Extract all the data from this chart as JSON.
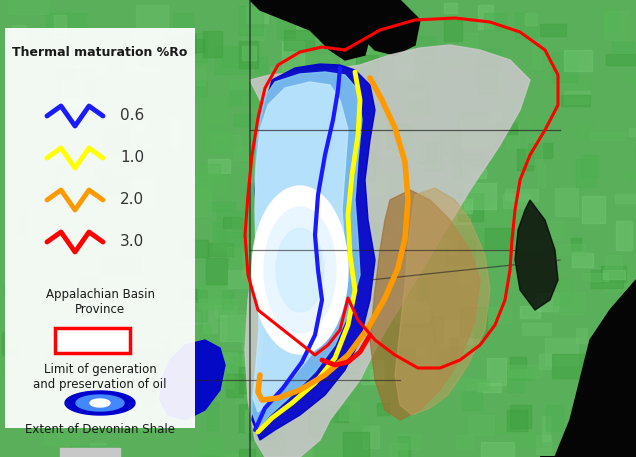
{
  "fig_width": 6.36,
  "fig_height": 4.57,
  "dpi": 100,
  "bg_green_light": "#6abf6a",
  "bg_green_mid": "#5aaf5a",
  "bg_green_dark": "#3a9a3a",
  "bg_green_vdark": "#2a8a2a",
  "ocean_black": "#050505",
  "terrain_brown": "#a07030",
  "terrain_tan": "#c0a060",
  "shale_gray": "#c8c8c8",
  "oil_blue_dark": "#0000cc",
  "oil_blue_mid": "#2255dd",
  "oil_sky": "#80c8f0",
  "oil_light": "#c0e8ff",
  "oil_white": "#ffffff",
  "contour_06": "#1a1aff",
  "contour_10": "#ffff00",
  "contour_20": "#ff9900",
  "contour_30": "#ff0000",
  "basin_border": "#ff0000",
  "state_border": "#222222",
  "legend_bg": "#ffffff",
  "legend_title": "Thermal maturation %Ro",
  "legend_items": [
    {
      "label": "0.6",
      "color": "#1a1aff"
    },
    {
      "label": "1.0",
      "color": "#ffff00"
    },
    {
      "label": "2.0",
      "color": "#ff9900"
    },
    {
      "label": "3.0",
      "color": "#ff0000"
    }
  ],
  "legend_section2": "Appalachian Basin\nProvince",
  "legend_section3": "Limit of generation\nand preservation of oil",
  "legend_section4": "Extent of Devonian Shale"
}
